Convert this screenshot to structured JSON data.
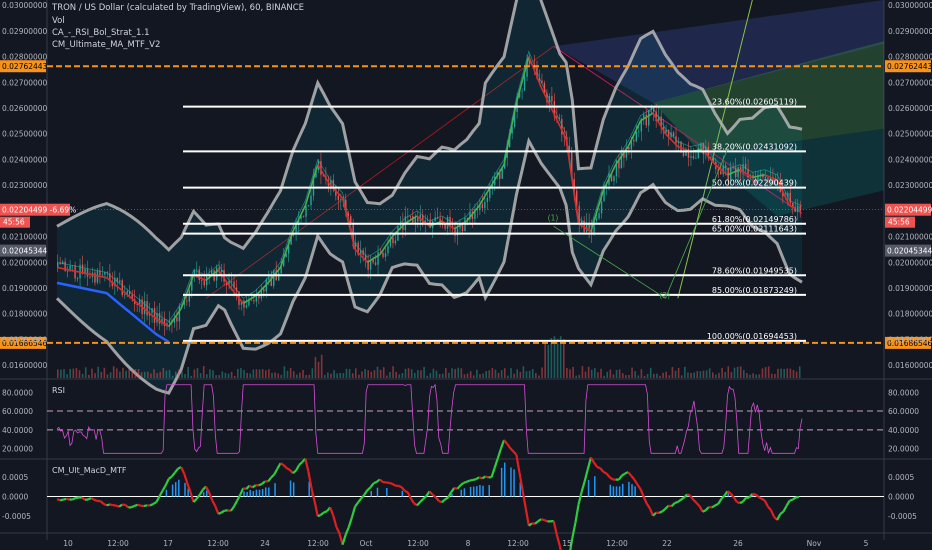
{
  "header": {
    "title": "TRON / US Dollar (calculated by TradingView), 60, BINANCE",
    "indicators": [
      "Vol",
      "CA_-_RSI_Bol_Strat_1.1",
      "CM_Ultimate_MA_MTF_V2"
    ]
  },
  "colors": {
    "background": "#131722",
    "up": "#26a69a",
    "down": "#ef5350",
    "fib_line": "#ffffff",
    "orange_level": "#f7931a",
    "bollinger": "#b8b8b8",
    "rsi": "#d64fd6",
    "macd_up": "#2ecc40",
    "macd_down": "#e02020",
    "histogram": "#2196f3"
  },
  "chart_data": [
    {
      "type": "candlestick",
      "pane": "price",
      "ylim": [
        0.0155,
        0.0302
      ],
      "y_ticks": [
        "0.03000000",
        "0.02900000",
        "0.02800000",
        "0.02700000",
        "0.02600000",
        "0.02500000",
        "0.02400000",
        "0.02300000",
        "0.02100000",
        "0.02000000",
        "0.01900000",
        "0.01800000",
        "0.01700000",
        "0.01600000"
      ],
      "x_ticks": [
        "10",
        "12:00",
        "17",
        "12:00",
        "24",
        "12:00",
        "Oct",
        "12:00",
        "8",
        "12:00",
        "15",
        "12:00",
        "22",
        "26",
        "Nov",
        "5"
      ],
      "close_path": [
        [
          0,
          0.0198
        ],
        [
          2,
          0.0196
        ],
        [
          4,
          0.0194
        ],
        [
          6,
          0.0186
        ],
        [
          8,
          0.0178
        ],
        [
          9,
          0.0175
        ],
        [
          10,
          0.0182
        ],
        [
          11,
          0.0195
        ],
        [
          12,
          0.0193
        ],
        [
          13,
          0.0197
        ],
        [
          14,
          0.019
        ],
        [
          15,
          0.0184
        ],
        [
          16,
          0.0187
        ],
        [
          17,
          0.0192
        ],
        [
          18,
          0.0198
        ],
        [
          19,
          0.0212
        ],
        [
          20,
          0.0222
        ],
        [
          21,
          0.0238
        ],
        [
          22,
          0.023
        ],
        [
          23,
          0.0225
        ],
        [
          24,
          0.0205
        ],
        [
          25,
          0.02
        ],
        [
          26,
          0.0203
        ],
        [
          27,
          0.021
        ],
        [
          28,
          0.0215
        ],
        [
          29,
          0.0218
        ],
        [
          30,
          0.0214
        ],
        [
          31,
          0.0216
        ],
        [
          32,
          0.0213
        ],
        [
          33,
          0.0216
        ],
        [
          34,
          0.0222
        ],
        [
          35,
          0.023
        ],
        [
          36,
          0.0238
        ],
        [
          37,
          0.0262
        ],
        [
          38,
          0.028
        ],
        [
          39,
          0.0268
        ],
        [
          40,
          0.0258
        ],
        [
          41,
          0.0248
        ],
        [
          42,
          0.0215
        ],
        [
          43,
          0.0212
        ],
        [
          44,
          0.0228
        ],
        [
          45,
          0.0238
        ],
        [
          46,
          0.0245
        ],
        [
          47,
          0.0255
        ],
        [
          48,
          0.0258
        ],
        [
          49,
          0.025
        ],
        [
          50,
          0.0245
        ],
        [
          51,
          0.0243
        ],
        [
          52,
          0.0244
        ],
        [
          53,
          0.0238
        ],
        [
          54,
          0.0234
        ],
        [
          55,
          0.0236
        ],
        [
          56,
          0.0233
        ],
        [
          57,
          0.0234
        ],
        [
          58,
          0.0232
        ],
        [
          59,
          0.0222
        ],
        [
          60,
          0.022
        ]
      ],
      "levels": [
        {
          "kind": "orange",
          "value": 0.02762443,
          "label": "0.02762443"
        },
        {
          "kind": "orange",
          "value": 0.01686546,
          "label": "0.01686546"
        }
      ],
      "fib_levels": [
        {
          "value": 0.02605119,
          "label": "23.60%(0.02605119)"
        },
        {
          "value": 0.02431092,
          "label": "38.20%(0.02431092)"
        },
        {
          "value": 0.02290439,
          "label": "50.00%(0.02290439)"
        },
        {
          "value": 0.02149786,
          "label": "61.80%(0.02149786)"
        },
        {
          "value": 0.02111643,
          "label": "65.00%(0.02111643)"
        },
        {
          "value": 0.01949535,
          "label": "78.60%(0.01949535)"
        },
        {
          "value": 0.01873249,
          "label": "85.00%(0.01873249)"
        },
        {
          "value": 0.01694453,
          "label": "100.00%(0.01694453)"
        }
      ],
      "price_badges": [
        {
          "value": 0.02204499,
          "label": "0.02204499",
          "color": "#ef5350"
        },
        {
          "value": 0.02045344,
          "label": "0.02045344",
          "color": "#555a66"
        }
      ],
      "last_price": {
        "price": "0.02204499",
        "change": "-6.69%",
        "countdown": "45:56"
      },
      "waves": [
        {
          "label": "(1)",
          "value": 0.0215,
          "position": 40
        },
        {
          "label": "(2)",
          "value": 0.0185,
          "position": 49
        }
      ]
    },
    {
      "type": "line",
      "pane": "rsi",
      "name": "RSI",
      "ylim": [
        10,
        92
      ],
      "y_ticks": [
        "80.0000",
        "60.0000",
        "40.0000",
        "20.0000"
      ],
      "bands": [
        60,
        40
      ]
    },
    {
      "type": "line",
      "pane": "macd",
      "name": "CM_Ult_MacD_MTF",
      "ylim": [
        -0.0009,
        0.0009
      ],
      "y_ticks": [
        "0.0005",
        "0.0000",
        "-0.0005"
      ],
      "y_ticks_right": [
        "0.0005",
        "0.0000",
        "-0.0005"
      ]
    }
  ]
}
